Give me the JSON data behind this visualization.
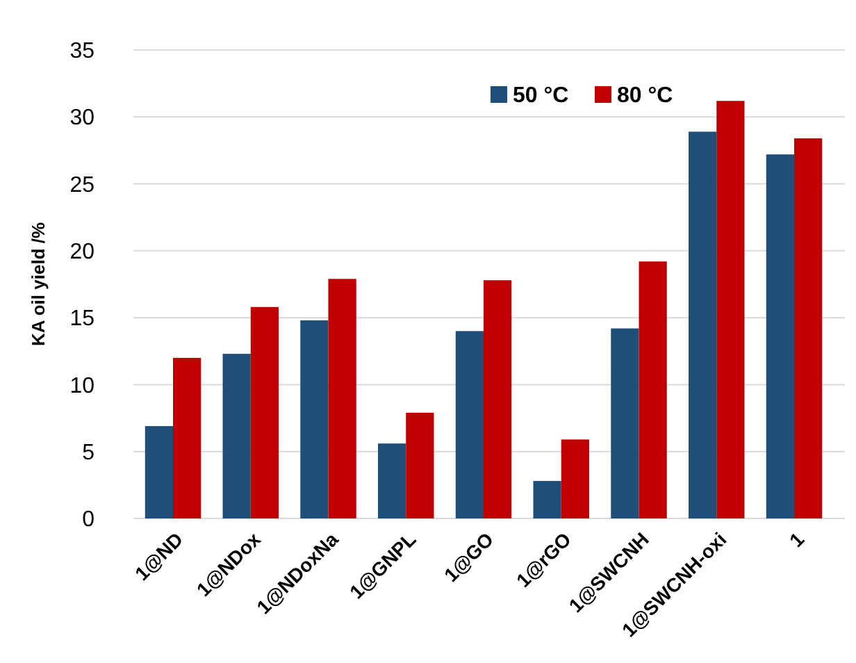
{
  "chart_data": {
    "type": "bar",
    "ylabel": "KA oil yield /%",
    "categories": [
      "1@ND",
      "1@NDox",
      "1@NDoxNa",
      "1@GNPL",
      "1@GO",
      "1@rGO",
      "1@SWCNH",
      "1@SWCNH-oxi",
      "1"
    ],
    "series": [
      {
        "name": "50 °C",
        "color": "#1f4e79",
        "values": [
          6.9,
          12.3,
          14.8,
          5.6,
          14,
          2.8,
          14.2,
          28.9,
          27.2
        ]
      },
      {
        "name": "80 °C",
        "color": "#c00000",
        "values": [
          12,
          15.8,
          17.9,
          7.9,
          17.8,
          5.9,
          19.2,
          31.2,
          28.4
        ]
      }
    ],
    "ylim": [
      0,
      35
    ],
    "yticks": [
      0,
      5,
      10,
      15,
      20,
      25,
      30,
      35
    ],
    "grid": "y",
    "legend": "top right"
  }
}
